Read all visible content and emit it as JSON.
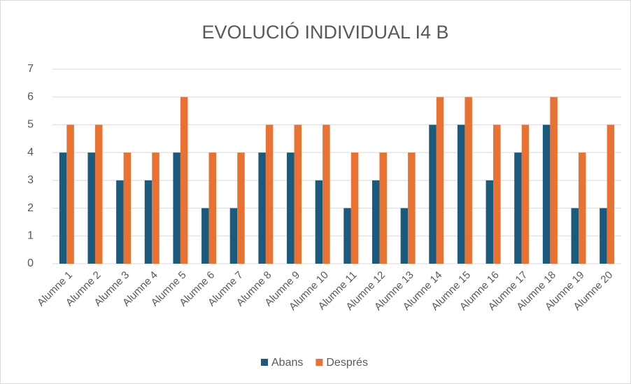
{
  "chart_data": {
    "type": "bar",
    "title": "EVOLUCIÓ INDIVIDUAL I4 B",
    "categories": [
      "Alumne 1",
      "Alumne 2",
      "Alumne 3",
      "Alumne 4",
      "Alumne 5",
      "Alumne 6",
      "Alumne 7",
      "Alumne 8",
      "Alumne 9",
      "Alumne 10",
      "Alumne 11",
      "Alumne 12",
      "Alumne 13",
      "Alumne 14",
      "Alumne 15",
      "Alumne 16",
      "Alumne 17",
      "Alumne 18",
      "Alumne 19",
      "Alumne 20"
    ],
    "series": [
      {
        "name": "Abans",
        "color": "#1b5a7c",
        "values": [
          4,
          4,
          3,
          3,
          4,
          2,
          2,
          4,
          4,
          3,
          2,
          3,
          2,
          5,
          5,
          3,
          4,
          5,
          2,
          2
        ]
      },
      {
        "name": "Després",
        "color": "#e97132",
        "values": [
          5,
          5,
          4,
          4,
          6,
          4,
          4,
          5,
          5,
          5,
          4,
          4,
          4,
          6,
          6,
          5,
          5,
          6,
          4,
          5
        ]
      }
    ],
    "ylim": [
      0,
      7
    ],
    "yticks": [
      0,
      1,
      2,
      3,
      4,
      5,
      6,
      7
    ],
    "grid": true,
    "legend": "bottom"
  }
}
